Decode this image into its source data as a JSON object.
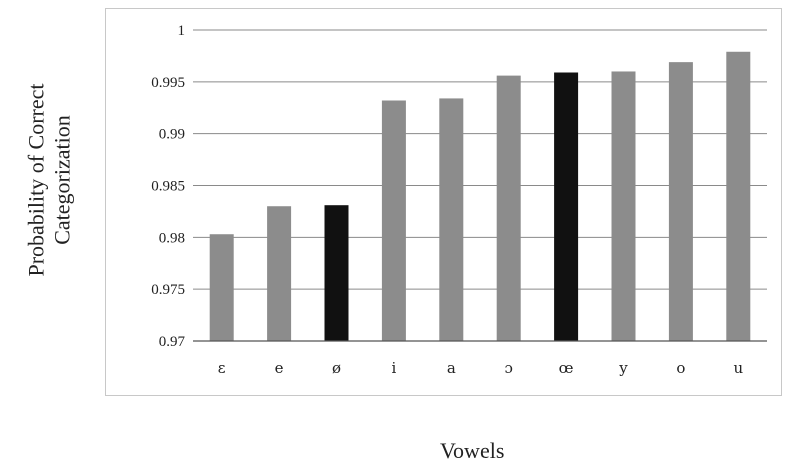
{
  "chart_data": {
    "type": "bar",
    "categories": [
      "ɛ",
      "e",
      "ø",
      "i",
      "a",
      "ɔ",
      "œ",
      "y",
      "o",
      "u"
    ],
    "values": [
      0.9803,
      0.983,
      0.9831,
      0.9932,
      0.9934,
      0.9956,
      0.9959,
      0.996,
      0.9969,
      0.9979
    ],
    "highlighted": [
      "ø",
      "œ"
    ],
    "colors": {
      "default": "#8c8c8c",
      "highlight": "#111111",
      "grid": "#8a8a8a"
    },
    "xlabel": "Vowels",
    "ylabel_lines": [
      "Probability of  Correct",
      "Categorization"
    ],
    "ylim": [
      0.97,
      1
    ],
    "yticks": [
      "0.97",
      "0.975",
      "0.98",
      "0.985",
      "0.99",
      "0.995",
      "1"
    ],
    "grid": true,
    "legend": "none"
  }
}
